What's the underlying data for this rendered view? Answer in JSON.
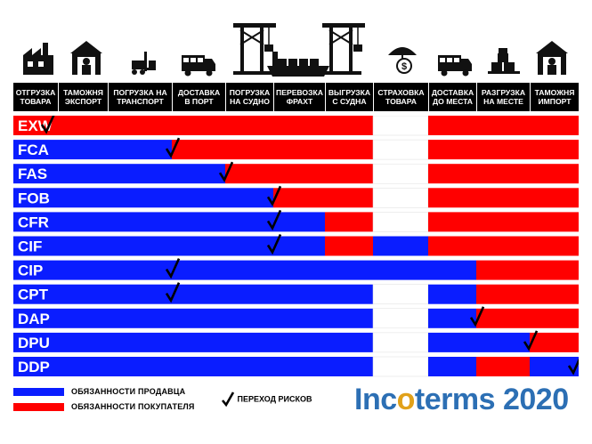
{
  "columns": [
    "ОТГРУЗКА\nТОВАРА",
    "ТАМОЖНЯ\nЭКСПОРТ",
    "ПОГРУЗКА НА\nТРАНСПОРТ",
    "ДОСТАВКА\nВ ПОРТ",
    "ПОГРУЗКА\nНА СУДНО",
    "ПЕРЕВОЗКА\nФРАХТ",
    "ВЫГРУЗКА\nС СУДНА",
    "СТРАХОВКА\nТОВАРА",
    "ДОСТАВКА\nДО МЕСТА",
    "РАЗГРУЗКА\nНА МЕСТЕ",
    "ТАМОЖНЯ\nИМПОРТ"
  ],
  "icons": [
    "factory-icon",
    "customs-warehouse-icon",
    "forklift-icon",
    "truck-icon",
    "port-crane-icon",
    "cargo-ship-icon",
    "port-crane-icon",
    "insurance-umbrella-icon",
    "truck-icon",
    "unloading-boxes-icon",
    "customs-warehouse-icon"
  ],
  "colors": {
    "seller": "#0a1dff",
    "buyer": "#ff0000",
    "insurance_gap": "#ffffff",
    "header": "#000000"
  },
  "chart_data": {
    "type": "table",
    "terms": [
      {
        "name": "EXW",
        "segments": [
          "buyer",
          "buyer",
          "buyer",
          "buyer",
          "buyer",
          "buyer",
          "buyer",
          "none",
          "buyer",
          "buyer",
          "buyer"
        ],
        "risk_transfer": 0.2
      },
      {
        "name": "FCA",
        "segments": [
          "seller",
          "seller",
          "seller",
          "buyer",
          "buyer",
          "buyer",
          "buyer",
          "none",
          "buyer",
          "buyer",
          "buyer"
        ],
        "risk_transfer": 3.0
      },
      {
        "name": "FAS",
        "segments": [
          "seller",
          "seller",
          "seller",
          "seller",
          "buyer",
          "buyer",
          "buyer",
          "none",
          "buyer",
          "buyer",
          "buyer"
        ],
        "risk_transfer": 4.0
      },
      {
        "name": "FOB",
        "segments": [
          "seller",
          "seller",
          "seller",
          "seller",
          "seller",
          "buyer",
          "buyer",
          "none",
          "buyer",
          "buyer",
          "buyer"
        ],
        "risk_transfer": 5.0
      },
      {
        "name": "CFR",
        "segments": [
          "seller",
          "seller",
          "seller",
          "seller",
          "seller",
          "seller",
          "buyer",
          "none",
          "buyer",
          "buyer",
          "buyer"
        ],
        "risk_transfer": 5.0
      },
      {
        "name": "CIF",
        "segments": [
          "seller",
          "seller",
          "seller",
          "seller",
          "seller",
          "seller",
          "buyer",
          "seller",
          "buyer",
          "buyer",
          "buyer"
        ],
        "risk_transfer": 5.0
      },
      {
        "name": "CIP",
        "segments": [
          "seller",
          "seller",
          "seller",
          "seller",
          "seller",
          "seller",
          "seller",
          "seller",
          "seller",
          "buyer",
          "buyer"
        ],
        "risk_transfer": 3.0
      },
      {
        "name": "CPT",
        "segments": [
          "seller",
          "seller",
          "seller",
          "seller",
          "seller",
          "seller",
          "seller",
          "none",
          "seller",
          "buyer",
          "buyer"
        ],
        "risk_transfer": 3.0
      },
      {
        "name": "DAP",
        "segments": [
          "seller",
          "seller",
          "seller",
          "seller",
          "seller",
          "seller",
          "seller",
          "none",
          "seller",
          "buyer",
          "buyer"
        ],
        "risk_transfer": 9.0
      },
      {
        "name": "DPU",
        "segments": [
          "seller",
          "seller",
          "seller",
          "seller",
          "seller",
          "seller",
          "seller",
          "none",
          "seller",
          "seller",
          "buyer"
        ],
        "risk_transfer": 10.0
      },
      {
        "name": "DDP",
        "segments": [
          "seller",
          "seller",
          "seller",
          "seller",
          "seller",
          "seller",
          "seller",
          "none",
          "seller",
          "buyer",
          "seller"
        ],
        "risk_transfer": 11.0
      }
    ]
  },
  "legend": {
    "seller": "ОБЯЗАННОСТИ ПРОДАВЦА",
    "buyer": "ОБЯЗАННОСТИ ПОКУПАТЕЛЯ",
    "risk": "ПЕРЕХОД РИСКОВ"
  },
  "logo": {
    "word_left": "Inc",
    "word_dot": "o",
    "word_right": "terms",
    "year": "2020"
  }
}
